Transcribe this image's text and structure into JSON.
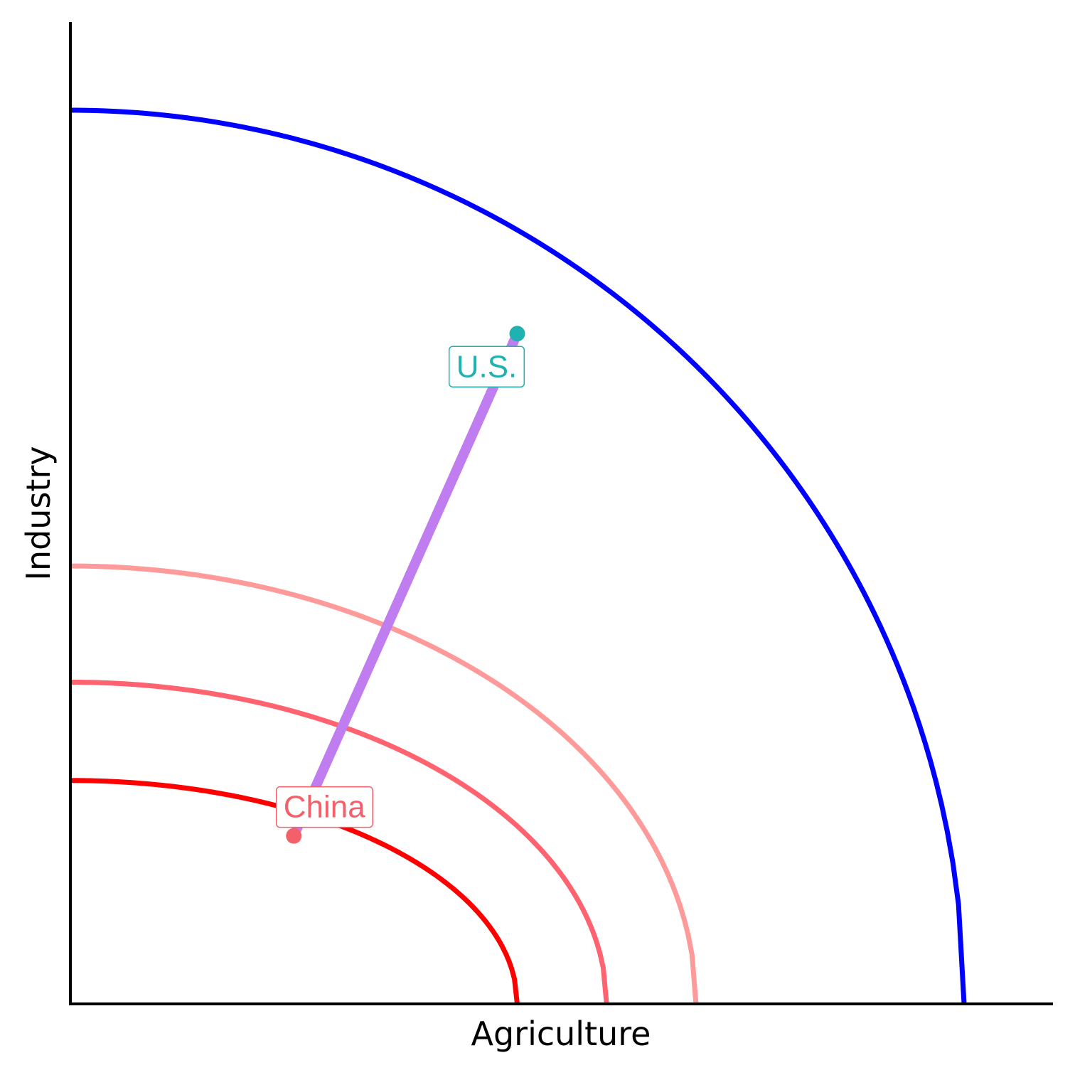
{
  "chart_data": {
    "type": "line",
    "title": "",
    "xlabel": "Agriculture",
    "ylabel": "Industry",
    "xlim": [
      0,
      11
    ],
    "ylim": [
      0,
      11
    ],
    "grid": false,
    "legend": "none",
    "series": [
      {
        "kind": "frontier",
        "x_intercept": 10,
        "y_intercept": 10,
        "color": "#0000FF"
      },
      {
        "kind": "frontier",
        "x_intercept": 7,
        "y_intercept": 4.9,
        "color": "#FF9A9A"
      },
      {
        "kind": "frontier",
        "x_intercept": 6,
        "y_intercept": 3.6,
        "color": "#FF6370"
      },
      {
        "kind": "frontier",
        "x_intercept": 5,
        "y_intercept": 2.5,
        "color": "#FF0000"
      }
    ],
    "connector": {
      "from": [
        2.5,
        1.88
      ],
      "to": [
        5,
        7.5
      ],
      "color": "#C07DF0"
    },
    "points": [
      {
        "name": "U.S.",
        "label": "U.S.",
        "x": 5,
        "y": 7.5,
        "color": "#1FB2B2"
      },
      {
        "name": "China",
        "label": "China",
        "x": 2.5,
        "y": 1.88,
        "color": "#F4606A"
      }
    ]
  }
}
